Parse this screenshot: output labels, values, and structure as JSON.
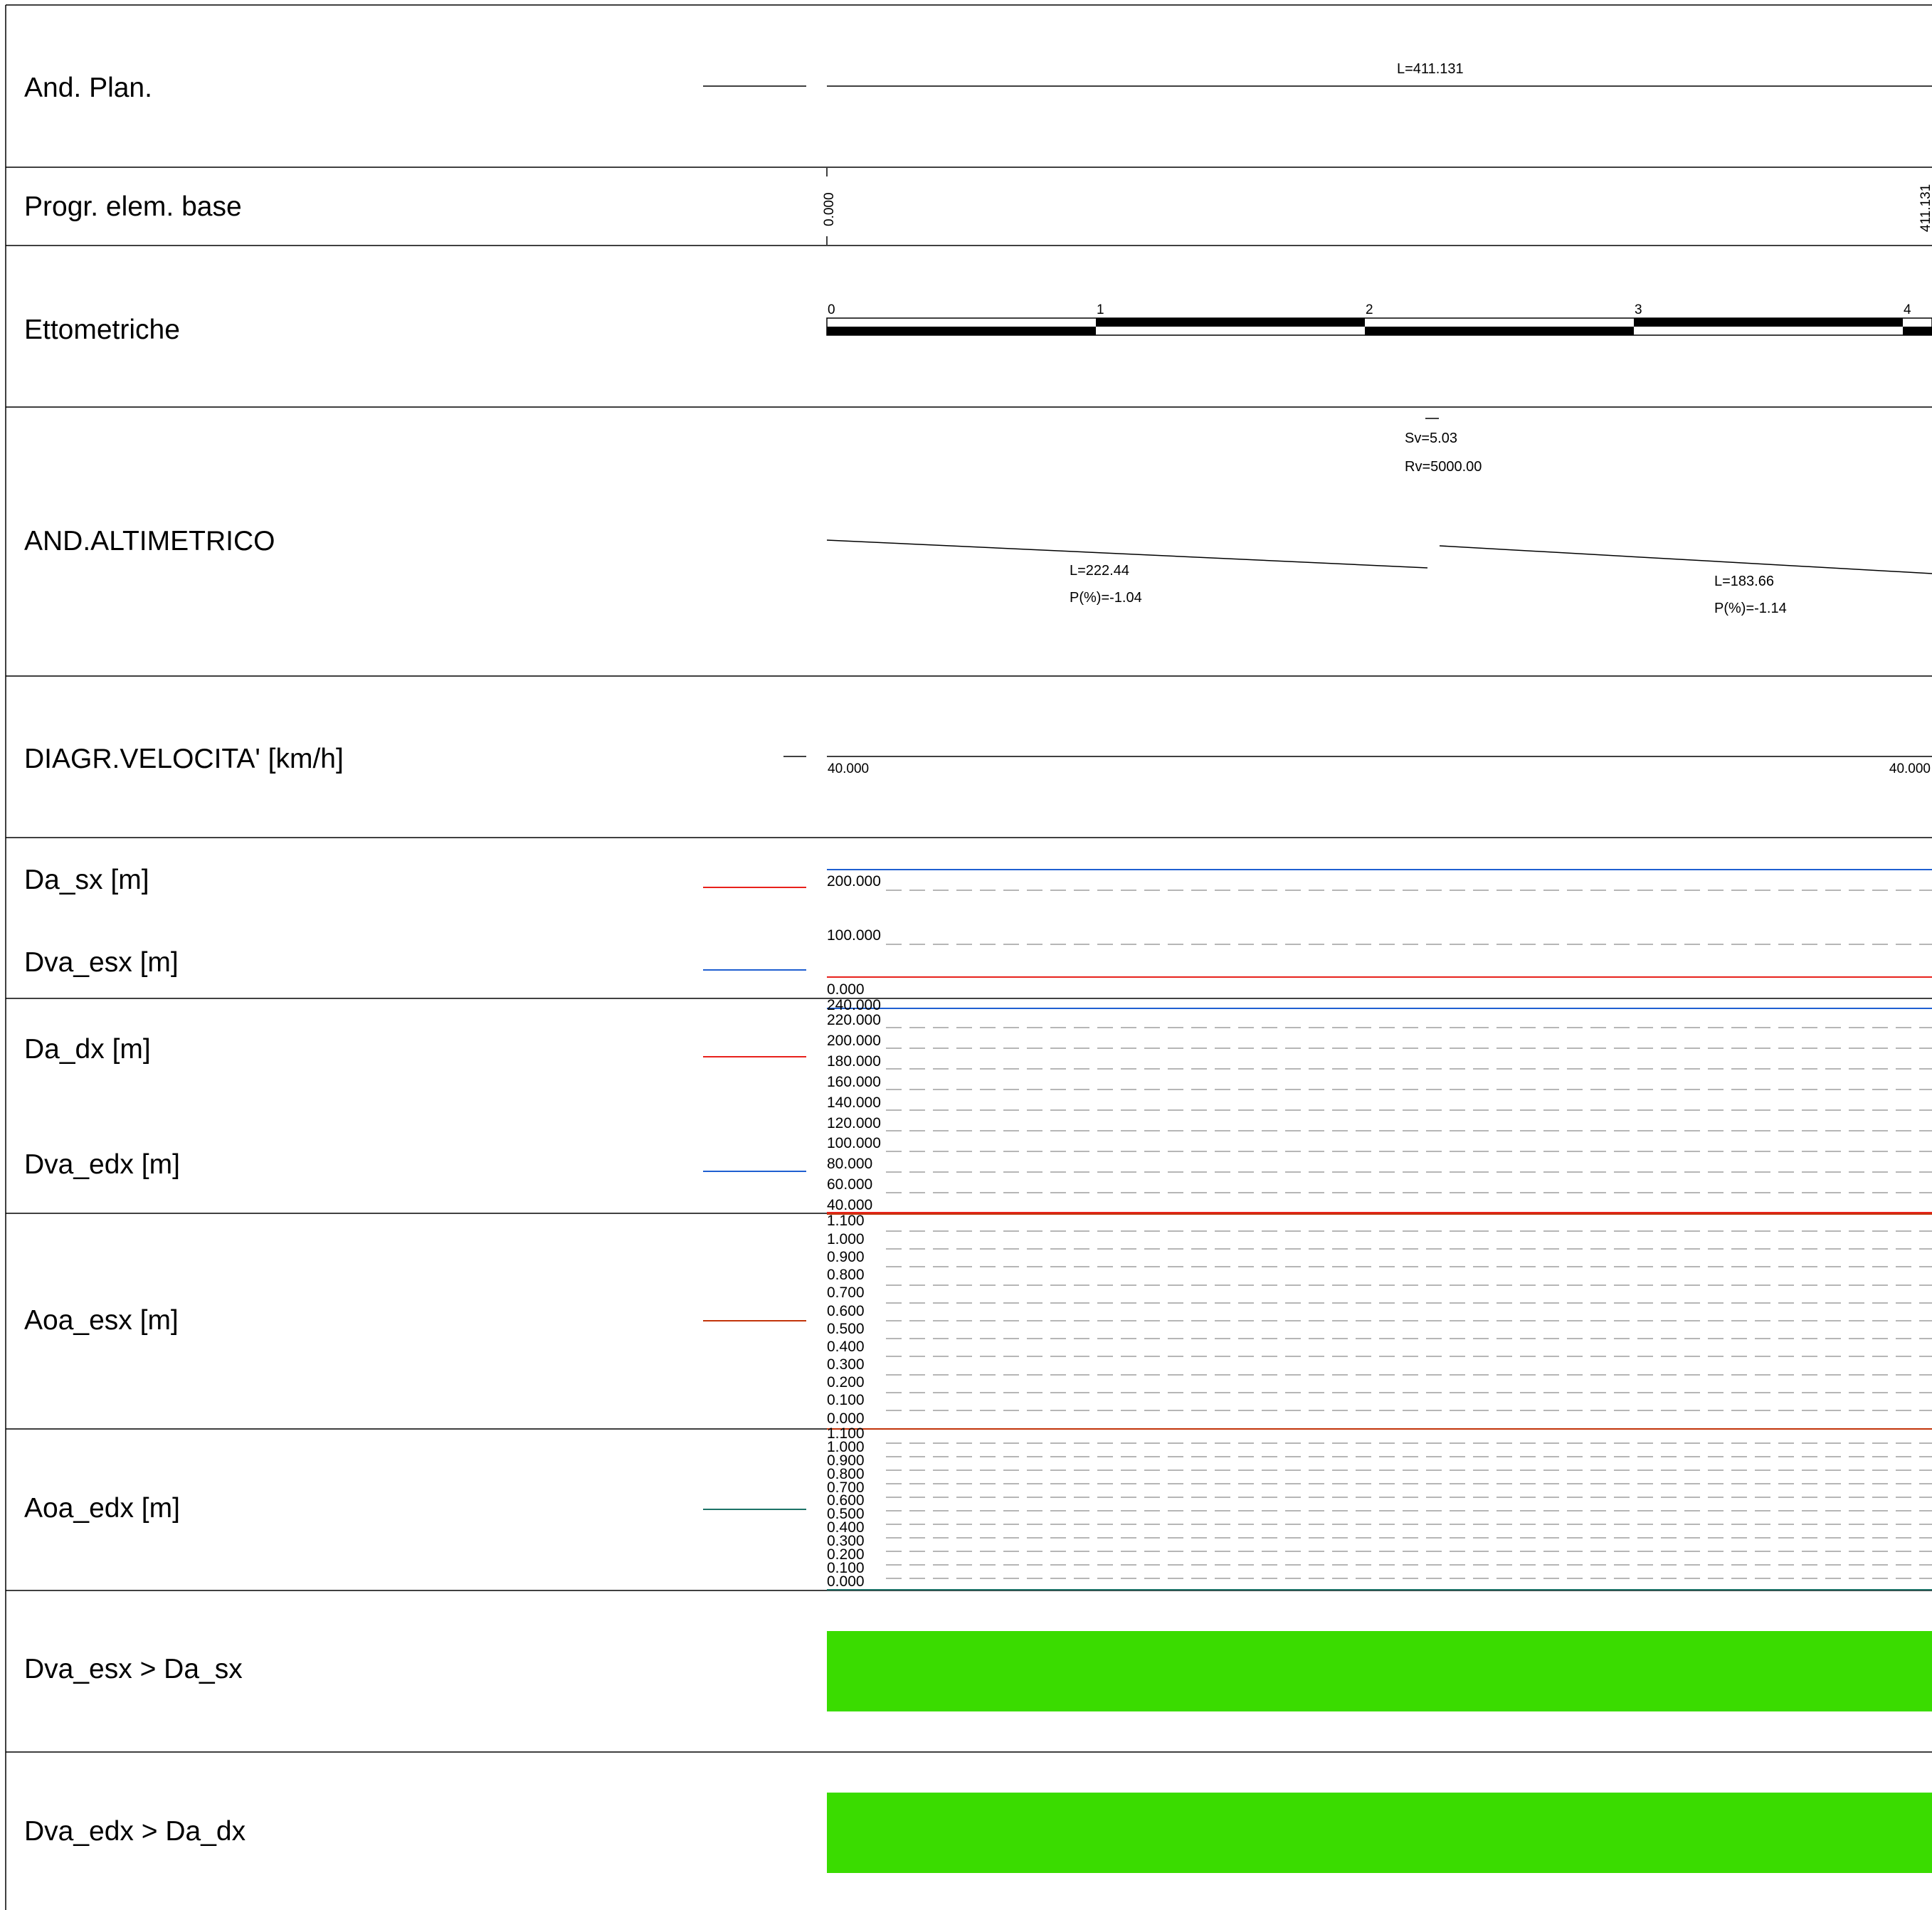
{
  "rows": {
    "and_plan": "And. Plan.",
    "progr_elem_base": "Progr. elem. base",
    "ettometriche": "Ettometriche",
    "and_altimetrico": "AND.ALTIMETRICO",
    "diagr_velocita": "DIAGR.VELOCITA' [km/h]",
    "da_sx": "Da_sx [m]",
    "dva_esx": "Dva_esx [m]",
    "da_dx": "Da_dx [m]",
    "dva_edx": "Dva_edx [m]",
    "aoa_esx": "Aoa_esx [m]",
    "aoa_edx": "Aoa_edx [m]",
    "check_sx": "Dva_esx > Da_sx",
    "check_dx": "Dva_edx > Da_dx"
  },
  "plan": {
    "length_label": "L=411.131"
  },
  "progressive": {
    "start": "0.000",
    "end": "411.131"
  },
  "ettometriche": {
    "ticks": [
      "0",
      "1",
      "2",
      "3",
      "4"
    ]
  },
  "altimetrico": {
    "vertex_sv": "Sv=5.03",
    "vertex_rv": "Rv=5000.00",
    "segments": [
      {
        "length": "L=222.44",
        "slope": "P(%)=-1.04"
      },
      {
        "length": "L=183.66",
        "slope": "P(%)=-1.14"
      }
    ]
  },
  "velocity": {
    "start": "40.000",
    "end": "40.000"
  },
  "da_sx_axis": [
    "200.000",
    "100.000",
    "0.000"
  ],
  "da_dx_axis": [
    "240.000",
    "220.000",
    "200.000",
    "180.000",
    "160.000",
    "140.000",
    "120.000",
    "100.000",
    "80.000",
    "60.000",
    "40.000"
  ],
  "aoa_esx_axis": [
    "1.100",
    "1.000",
    "0.900",
    "0.800",
    "0.700",
    "0.600",
    "0.500",
    "0.400",
    "0.300",
    "0.200",
    "0.100",
    "0.000"
  ],
  "aoa_edx_axis": [
    "1.100",
    "1.000",
    "0.900",
    "0.800",
    "0.700",
    "0.600",
    "0.500",
    "0.400",
    "0.300",
    "0.200",
    "0.100",
    "0.000"
  ],
  "colors": {
    "da": "#e8211b",
    "dva": "#1f5fd1",
    "aoa_esx": "#c2340a",
    "aoa_edx": "#1c7267",
    "check_ok": "#3adc00",
    "grid": "#8a8a8a"
  }
}
